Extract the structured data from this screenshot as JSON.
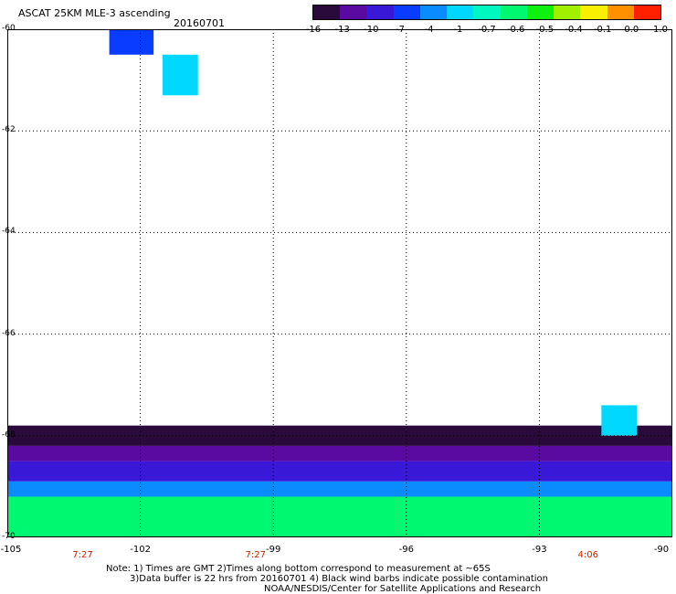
{
  "header": {
    "title": "ASCAT 25KM MLE-3 ascending",
    "date": "20160701"
  },
  "colorbar": {
    "labels": [
      "-16",
      "-13",
      "-10",
      "-7",
      "-4",
      "-1",
      "-0.7",
      "-0.6",
      "-0.5",
      "-0.4",
      "-0.1",
      "0.0",
      "1.0"
    ],
    "colors": [
      "#2a0a3a",
      "#5a0aa0",
      "#3a18d8",
      "#0a3cff",
      "#0a8cff",
      "#00d8ff",
      "#00f8c0",
      "#00f870",
      "#10f010",
      "#a0f000",
      "#f8f000",
      "#ff9000",
      "#ff2000"
    ]
  },
  "chart_data": {
    "type": "heatmap",
    "title": "ASCAT 25KM MLE-3 ascending",
    "xlabel": "",
    "ylabel": "",
    "xlim": [
      -105,
      -90
    ],
    "ylim": [
      -70,
      -60
    ],
    "x_ticks": [
      "-105",
      "-102",
      "-99",
      "-96",
      "-93",
      "-90"
    ],
    "y_ticks": [
      "-60",
      "-62",
      "-64",
      "-66",
      "-68",
      "-70"
    ],
    "grid": true,
    "time_labels": [
      {
        "lon": -103.3,
        "text": "7:27"
      },
      {
        "lon": -99.4,
        "text": "7:27"
      },
      {
        "lon": -91.9,
        "text": "4:06"
      }
    ],
    "color_scale": [
      "-16",
      "-13",
      "-10",
      "-7",
      "-4",
      "-1",
      "-0.7",
      "-0.6",
      "-0.5",
      "-0.4",
      "-0.1",
      "0.0",
      "1.0"
    ],
    "isolated_cells": [
      {
        "lon": [
          -102.7,
          -101.7
        ],
        "lat": [
          -60.5,
          -60.0
        ],
        "level": "-7"
      },
      {
        "lon": [
          -101.5,
          -100.7
        ],
        "lat": [
          -61.3,
          -60.5
        ],
        "level": "-1"
      },
      {
        "lon": [
          -91.6,
          -90.8
        ],
        "lat": [
          -68.0,
          -67.4
        ],
        "level": "-1"
      }
    ],
    "swath_bands": [
      {
        "lat": [
          -68.2,
          -67.8
        ],
        "level": "-16"
      },
      {
        "lat": [
          -68.5,
          -68.2
        ],
        "level": "-13"
      },
      {
        "lat": [
          -68.9,
          -68.5
        ],
        "level": "-10"
      },
      {
        "lat": [
          -69.2,
          -68.9
        ],
        "level": "-4"
      },
      {
        "lat": [
          -70.0,
          -69.2
        ],
        "level": "-0.6"
      }
    ]
  },
  "notes": {
    "line1": "Note: 1) Times are GMT 2)Times along bottom correspond to measurement at ~65S",
    "line2": "3)Data buffer is 22 hrs from 20160701 4) Black wind barbs indicate possible contamination",
    "line3": "NOAA/NESDIS/Center for Satellite Applications and Research"
  }
}
